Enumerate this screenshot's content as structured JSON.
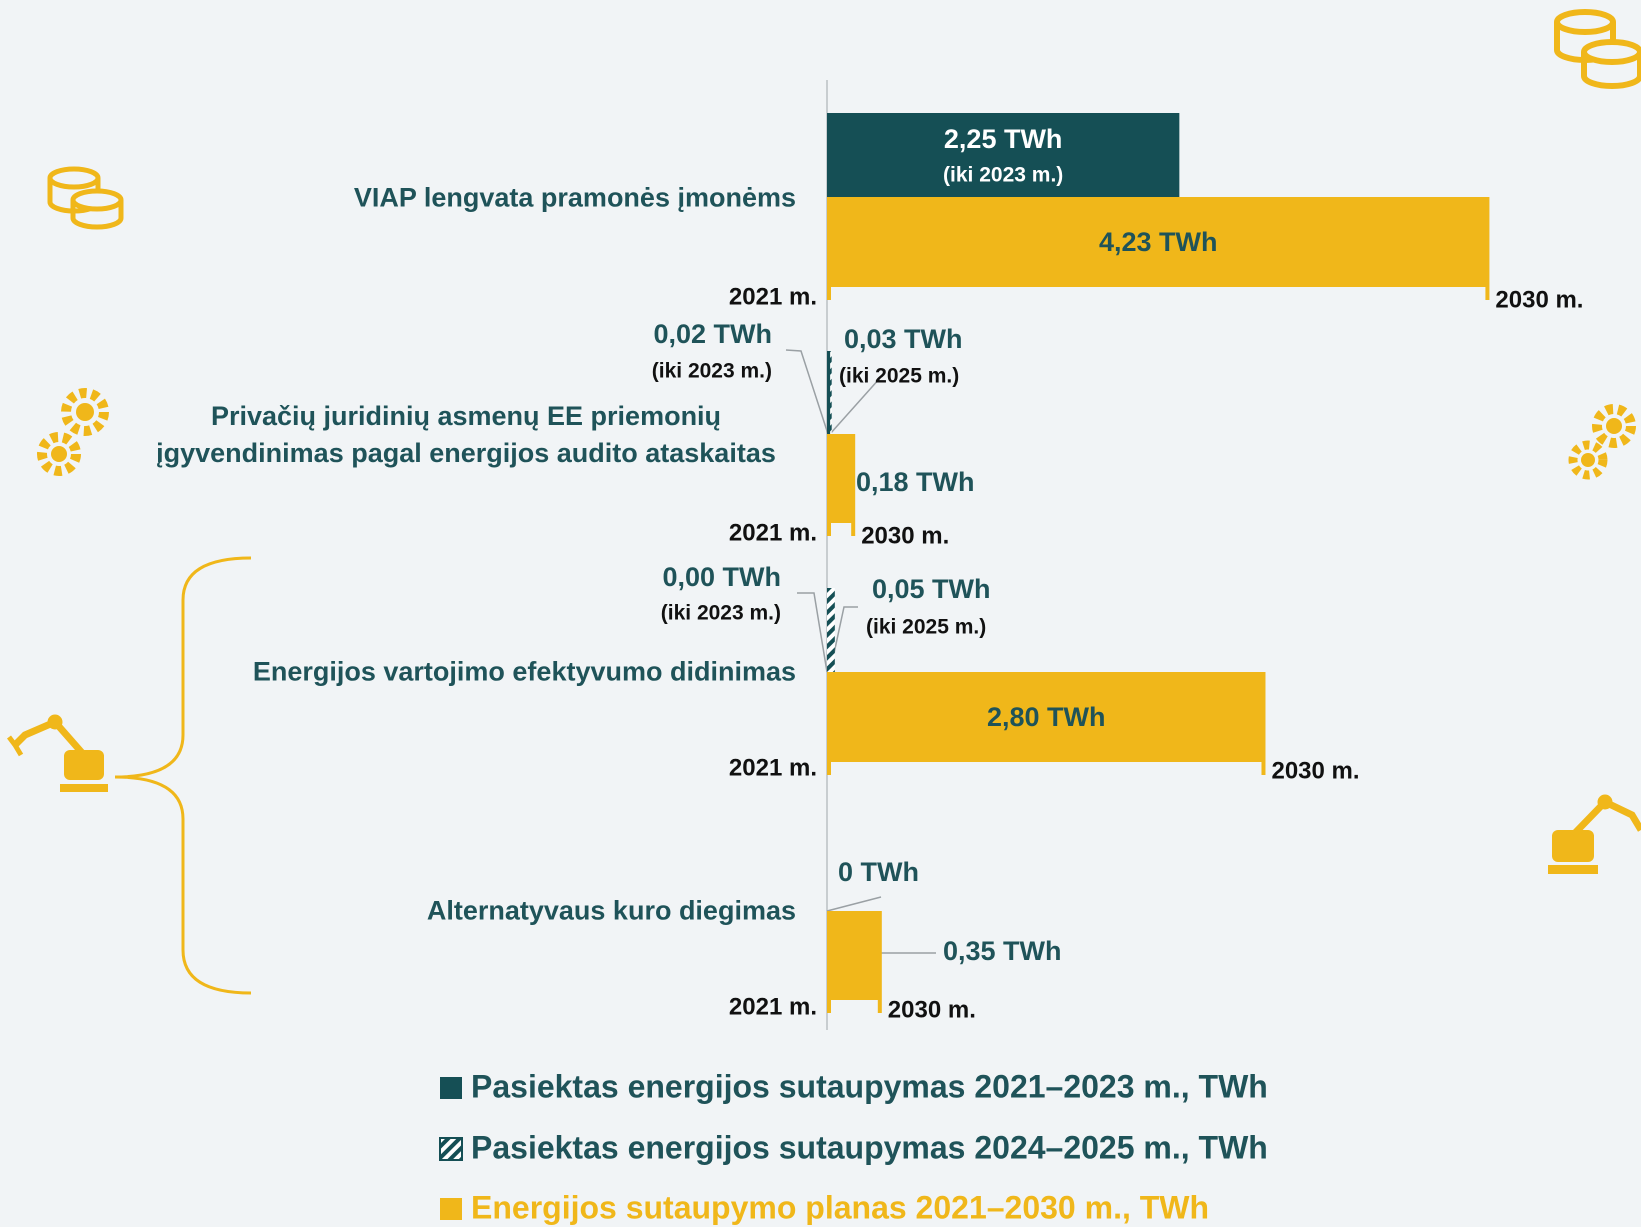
{
  "chart_data": {
    "type": "bar",
    "categories": [
      "VIAP lengvata pramonės įmonėms",
      "Privačių juridinių asmenų EE priemonių įgyvendinimas pagal energijos audito ataskaitas",
      "Energijos vartojimo efektyvumo didinimas",
      "Alternatyvaus kuro diegimas"
    ],
    "series": [
      {
        "name": "Pasiektas energijos sutaupymas 2021–2023 m., TWh",
        "color": "#154f55",
        "values": [
          2.25,
          0.02,
          0.0,
          0
        ],
        "value_labels": [
          "2,25 TWh",
          "0,02 TWh",
          "0,00 TWh",
          "0 TWh"
        ],
        "notes": [
          "(iki 2023 m.)",
          "(iki 2023 m.)",
          "(iki 2023 m.)",
          null
        ]
      },
      {
        "name": "Pasiektas energijos sutaupymas 2024–2025 m., TWh",
        "color": "#154f55",
        "pattern": "hatched",
        "values": [
          null,
          0.03,
          0.05,
          null
        ],
        "value_labels": [
          null,
          "0,03 TWh",
          "0,05 TWh",
          null
        ],
        "notes": [
          null,
          "(iki 2025 m.)",
          "(iki 2025 m.)",
          null
        ]
      },
      {
        "name": "Energijos sutaupymo planas 2021–2030 m., TWh",
        "color": "#f0b71a",
        "values": [
          4.23,
          0.18,
          2.8,
          0.35
        ],
        "value_labels": [
          "4,23 TWh",
          "0,18 TWh",
          "2,80 TWh",
          "0,35 TWh"
        ],
        "notes": [
          null,
          null,
          null,
          null
        ]
      }
    ],
    "start_label": "2021 m.",
    "end_label": "2030 m.",
    "xlim": [
      0,
      5
    ]
  }
}
